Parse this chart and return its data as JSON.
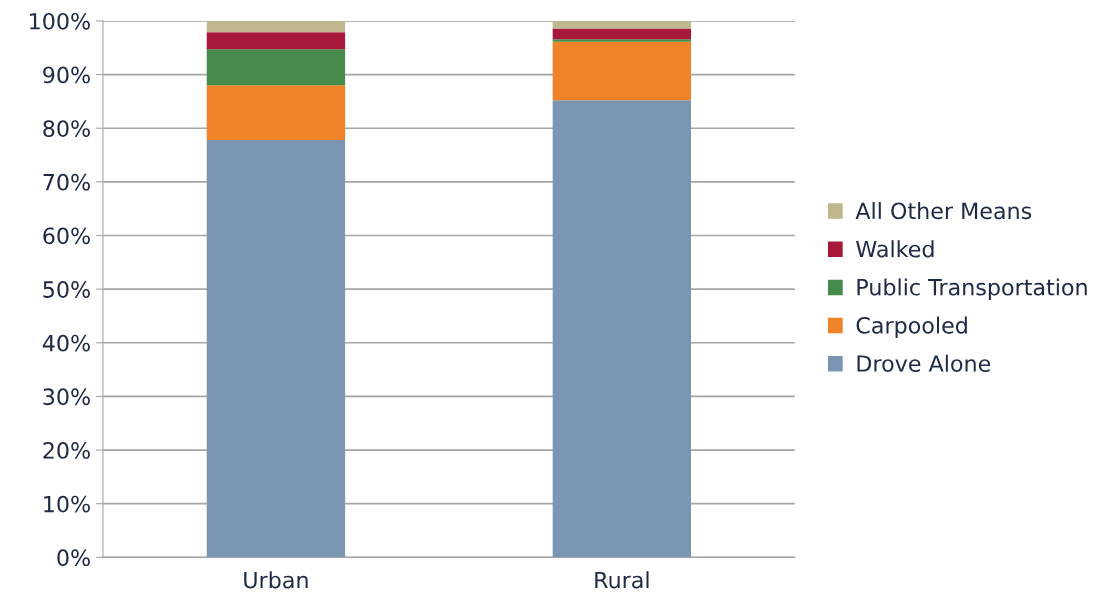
{
  "chart_data": {
    "type": "bar",
    "stacked": true,
    "categories": [
      "Urban",
      "Rural"
    ],
    "series": [
      {
        "name": "Drove Alone",
        "color": "#7a96b3",
        "values": [
          77.8,
          85.2
        ]
      },
      {
        "name": "Carpooled",
        "color": "#ee8329",
        "values": [
          10.2,
          10.9
        ]
      },
      {
        "name": "Public Transportation",
        "color": "#468b4c",
        "values": [
          6.7,
          0.5
        ]
      },
      {
        "name": "Walked",
        "color": "#a8183b",
        "values": [
          3.2,
          2.0
        ]
      },
      {
        "name": "All Other Means",
        "color": "#bfb78e",
        "values": [
          2.1,
          1.4
        ]
      }
    ],
    "ylim": [
      0,
      100
    ],
    "yticks": [
      {
        "value": 0,
        "label": "0%"
      },
      {
        "value": 10,
        "label": "10%"
      },
      {
        "value": 20,
        "label": "20%"
      },
      {
        "value": 30,
        "label": "30%"
      },
      {
        "value": 40,
        "label": "40%"
      },
      {
        "value": 50,
        "label": "50%"
      },
      {
        "value": 60,
        "label": "60%"
      },
      {
        "value": 70,
        "label": "70%"
      },
      {
        "value": 80,
        "label": "80%"
      },
      {
        "value": 90,
        "label": "90%"
      },
      {
        "value": 100,
        "label": "100%"
      }
    ],
    "grid": "y",
    "legend": "right"
  }
}
